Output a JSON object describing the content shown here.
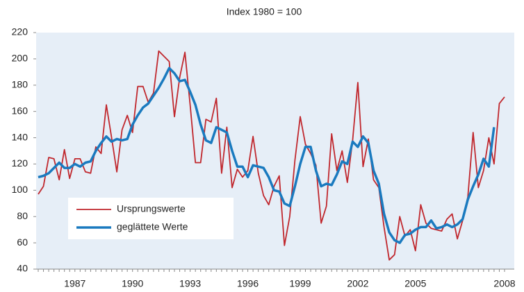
{
  "chart_data": {
    "type": "line",
    "title": "Index 1980 = 100",
    "categories": [
      null,
      null,
      null,
      null,
      null,
      null,
      null,
      "1987",
      null,
      null,
      null,
      null,
      null,
      null,
      null,
      null,
      null,
      null,
      "1990",
      null,
      null,
      null,
      null,
      null,
      null,
      null,
      null,
      null,
      null,
      "1993",
      null,
      null,
      null,
      null,
      null,
      null,
      null,
      null,
      null,
      null,
      "1996",
      null,
      null,
      null,
      null,
      null,
      null,
      null,
      null,
      null,
      "1999",
      null,
      null,
      null,
      null,
      null,
      null,
      null,
      null,
      null,
      null,
      "2002",
      null,
      null,
      null,
      null,
      null,
      null,
      null,
      null,
      null,
      null,
      "2005",
      null,
      null,
      null,
      null,
      null,
      null,
      null,
      null,
      null,
      null,
      null,
      null,
      null,
      null,
      null,
      null,
      "2008"
    ],
    "series": [
      {
        "name": "Ursprungswerte",
        "color": "#c0272d",
        "values": [
          97,
          103,
          125,
          124,
          108,
          131,
          109,
          124,
          124,
          114,
          113,
          133,
          128,
          165,
          140,
          114,
          146,
          157,
          144,
          179,
          179,
          167,
          174,
          206,
          202,
          198,
          156,
          186,
          205,
          165,
          121,
          121,
          154,
          152,
          170,
          113,
          148,
          102,
          116,
          110,
          115,
          141,
          113,
          96,
          89,
          103,
          111,
          58,
          80,
          123,
          156,
          135,
          128,
          119,
          75,
          88,
          143,
          115,
          130,
          106,
          138,
          182,
          118,
          139,
          108,
          102,
          72,
          47,
          51,
          80,
          65,
          70,
          54,
          89,
          75,
          71,
          70,
          69,
          78,
          82,
          63,
          77,
          95,
          144,
          102,
          115,
          140,
          120,
          166,
          171
        ]
      },
      {
        "name": "geglättete Werte",
        "color": "#1a7abf",
        "values": [
          110,
          111,
          113,
          117,
          121,
          117,
          117,
          120,
          118,
          121,
          122,
          130,
          136,
          141,
          137,
          139,
          138,
          139,
          150,
          157,
          163,
          166,
          172,
          178,
          185,
          193,
          189,
          183,
          184,
          175,
          165,
          150,
          138,
          136,
          148,
          146,
          144,
          130,
          118,
          118,
          110,
          119,
          118,
          117,
          110,
          100,
          99,
          90,
          88,
          103,
          120,
          133,
          133,
          115,
          103,
          105,
          104,
          112,
          122,
          120,
          137,
          133,
          141,
          136,
          115,
          105,
          82,
          68,
          62,
          60,
          66,
          67,
          70,
          72,
          72,
          77,
          71,
          72,
          74,
          72,
          74,
          78,
          93,
          103,
          112,
          124,
          118,
          148,
          null,
          null
        ]
      }
    ],
    "ylim": [
      40,
      220
    ],
    "yticks": [
      40,
      60,
      80,
      100,
      120,
      140,
      160,
      180,
      200,
      220
    ]
  }
}
